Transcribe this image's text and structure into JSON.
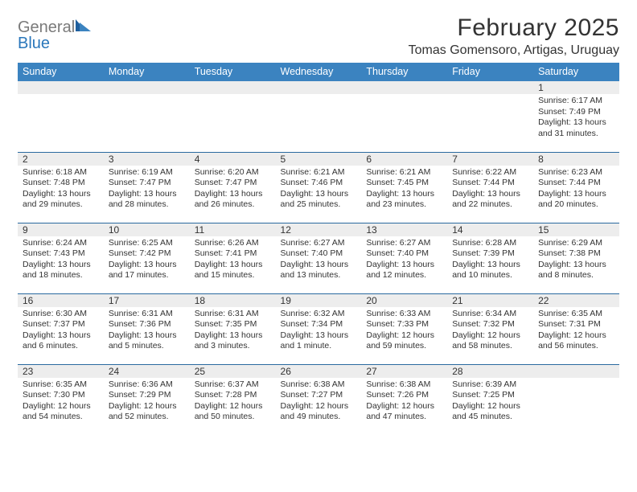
{
  "brand": {
    "part1": "General",
    "part2": "Blue"
  },
  "title": "February 2025",
  "location": "Tomas Gomensoro, Artigas, Uruguay",
  "colors": {
    "header_bg": "#3b83c0",
    "header_text": "#ffffff",
    "rule": "#2a6aa0",
    "band": "#ededed",
    "text": "#333333",
    "logo_gray": "#7a7a7a",
    "logo_blue": "#2a77bb"
  },
  "dow": [
    "Sunday",
    "Monday",
    "Tuesday",
    "Wednesday",
    "Thursday",
    "Friday",
    "Saturday"
  ],
  "weeks": [
    [
      {
        "n": "",
        "sr": "",
        "ss": "",
        "dl": ""
      },
      {
        "n": "",
        "sr": "",
        "ss": "",
        "dl": ""
      },
      {
        "n": "",
        "sr": "",
        "ss": "",
        "dl": ""
      },
      {
        "n": "",
        "sr": "",
        "ss": "",
        "dl": ""
      },
      {
        "n": "",
        "sr": "",
        "ss": "",
        "dl": ""
      },
      {
        "n": "",
        "sr": "",
        "ss": "",
        "dl": ""
      },
      {
        "n": "1",
        "sr": "Sunrise: 6:17 AM",
        "ss": "Sunset: 7:49 PM",
        "dl": "Daylight: 13 hours and 31 minutes."
      }
    ],
    [
      {
        "n": "2",
        "sr": "Sunrise: 6:18 AM",
        "ss": "Sunset: 7:48 PM",
        "dl": "Daylight: 13 hours and 29 minutes."
      },
      {
        "n": "3",
        "sr": "Sunrise: 6:19 AM",
        "ss": "Sunset: 7:47 PM",
        "dl": "Daylight: 13 hours and 28 minutes."
      },
      {
        "n": "4",
        "sr": "Sunrise: 6:20 AM",
        "ss": "Sunset: 7:47 PM",
        "dl": "Daylight: 13 hours and 26 minutes."
      },
      {
        "n": "5",
        "sr": "Sunrise: 6:21 AM",
        "ss": "Sunset: 7:46 PM",
        "dl": "Daylight: 13 hours and 25 minutes."
      },
      {
        "n": "6",
        "sr": "Sunrise: 6:21 AM",
        "ss": "Sunset: 7:45 PM",
        "dl": "Daylight: 13 hours and 23 minutes."
      },
      {
        "n": "7",
        "sr": "Sunrise: 6:22 AM",
        "ss": "Sunset: 7:44 PM",
        "dl": "Daylight: 13 hours and 22 minutes."
      },
      {
        "n": "8",
        "sr": "Sunrise: 6:23 AM",
        "ss": "Sunset: 7:44 PM",
        "dl": "Daylight: 13 hours and 20 minutes."
      }
    ],
    [
      {
        "n": "9",
        "sr": "Sunrise: 6:24 AM",
        "ss": "Sunset: 7:43 PM",
        "dl": "Daylight: 13 hours and 18 minutes."
      },
      {
        "n": "10",
        "sr": "Sunrise: 6:25 AM",
        "ss": "Sunset: 7:42 PM",
        "dl": "Daylight: 13 hours and 17 minutes."
      },
      {
        "n": "11",
        "sr": "Sunrise: 6:26 AM",
        "ss": "Sunset: 7:41 PM",
        "dl": "Daylight: 13 hours and 15 minutes."
      },
      {
        "n": "12",
        "sr": "Sunrise: 6:27 AM",
        "ss": "Sunset: 7:40 PM",
        "dl": "Daylight: 13 hours and 13 minutes."
      },
      {
        "n": "13",
        "sr": "Sunrise: 6:27 AM",
        "ss": "Sunset: 7:40 PM",
        "dl": "Daylight: 13 hours and 12 minutes."
      },
      {
        "n": "14",
        "sr": "Sunrise: 6:28 AM",
        "ss": "Sunset: 7:39 PM",
        "dl": "Daylight: 13 hours and 10 minutes."
      },
      {
        "n": "15",
        "sr": "Sunrise: 6:29 AM",
        "ss": "Sunset: 7:38 PM",
        "dl": "Daylight: 13 hours and 8 minutes."
      }
    ],
    [
      {
        "n": "16",
        "sr": "Sunrise: 6:30 AM",
        "ss": "Sunset: 7:37 PM",
        "dl": "Daylight: 13 hours and 6 minutes."
      },
      {
        "n": "17",
        "sr": "Sunrise: 6:31 AM",
        "ss": "Sunset: 7:36 PM",
        "dl": "Daylight: 13 hours and 5 minutes."
      },
      {
        "n": "18",
        "sr": "Sunrise: 6:31 AM",
        "ss": "Sunset: 7:35 PM",
        "dl": "Daylight: 13 hours and 3 minutes."
      },
      {
        "n": "19",
        "sr": "Sunrise: 6:32 AM",
        "ss": "Sunset: 7:34 PM",
        "dl": "Daylight: 13 hours and 1 minute."
      },
      {
        "n": "20",
        "sr": "Sunrise: 6:33 AM",
        "ss": "Sunset: 7:33 PM",
        "dl": "Daylight: 12 hours and 59 minutes."
      },
      {
        "n": "21",
        "sr": "Sunrise: 6:34 AM",
        "ss": "Sunset: 7:32 PM",
        "dl": "Daylight: 12 hours and 58 minutes."
      },
      {
        "n": "22",
        "sr": "Sunrise: 6:35 AM",
        "ss": "Sunset: 7:31 PM",
        "dl": "Daylight: 12 hours and 56 minutes."
      }
    ],
    [
      {
        "n": "23",
        "sr": "Sunrise: 6:35 AM",
        "ss": "Sunset: 7:30 PM",
        "dl": "Daylight: 12 hours and 54 minutes."
      },
      {
        "n": "24",
        "sr": "Sunrise: 6:36 AM",
        "ss": "Sunset: 7:29 PM",
        "dl": "Daylight: 12 hours and 52 minutes."
      },
      {
        "n": "25",
        "sr": "Sunrise: 6:37 AM",
        "ss": "Sunset: 7:28 PM",
        "dl": "Daylight: 12 hours and 50 minutes."
      },
      {
        "n": "26",
        "sr": "Sunrise: 6:38 AM",
        "ss": "Sunset: 7:27 PM",
        "dl": "Daylight: 12 hours and 49 minutes."
      },
      {
        "n": "27",
        "sr": "Sunrise: 6:38 AM",
        "ss": "Sunset: 7:26 PM",
        "dl": "Daylight: 12 hours and 47 minutes."
      },
      {
        "n": "28",
        "sr": "Sunrise: 6:39 AM",
        "ss": "Sunset: 7:25 PM",
        "dl": "Daylight: 12 hours and 45 minutes."
      },
      {
        "n": "",
        "sr": "",
        "ss": "",
        "dl": ""
      }
    ]
  ]
}
